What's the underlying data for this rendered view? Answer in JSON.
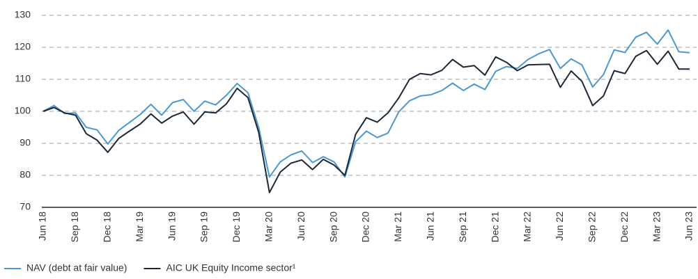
{
  "chart_data": {
    "type": "line",
    "categories": [
      "Jun 18",
      null,
      null,
      "Sep 18",
      null,
      null,
      "Dec 18",
      null,
      null,
      "Mar 19",
      null,
      null,
      "Jun 19",
      null,
      null,
      "Sep 19",
      null,
      null,
      "Dec 19",
      null,
      null,
      "Mar 20",
      null,
      null,
      "Jun 20",
      null,
      null,
      "Sep 20",
      null,
      null,
      "Dec 20",
      null,
      null,
      "Mar 21",
      null,
      null,
      "Jun 21",
      null,
      null,
      "Sep 21",
      null,
      null,
      "Dec 21",
      null,
      null,
      "Mar 22",
      null,
      null,
      "Jun 22",
      null,
      null,
      "Sep 22",
      null,
      null,
      "Dec 22",
      null,
      null,
      "Mar 23",
      null,
      null,
      "Jun 23"
    ],
    "series": [
      {
        "name": "NAV (debt at fair value)",
        "color": "#4a97d2",
        "values": [
          100,
          101.8,
          99.3,
          99.5,
          95,
          94.2,
          89.8,
          94,
          96.5,
          99,
          102.2,
          98.8,
          102.7,
          103.7,
          100,
          103.2,
          102,
          105,
          108.7,
          105.8,
          95,
          79.5,
          84.2,
          86.4,
          87.6,
          84,
          85.8,
          84.2,
          79.5,
          90.5,
          93.8,
          91.8,
          93.2,
          99.8,
          103.3,
          104.8,
          105.2,
          106.5,
          108.8,
          106.5,
          108.5,
          106.8,
          112.5,
          114,
          113.4,
          116.2,
          118,
          119.3,
          113.4,
          116.4,
          114.5,
          107.6,
          111.5,
          119.2,
          118.4,
          123.2,
          124.7,
          121,
          125.4,
          118.6,
          118.3
        ]
      },
      {
        "name": "AIC UK Equity Income sector¹",
        "color": "#1c2836",
        "values": [
          100,
          101.2,
          99.5,
          98.8,
          93,
          91,
          87.2,
          91.5,
          93.8,
          96,
          99.2,
          96.3,
          98.5,
          99.8,
          96,
          99.8,
          99.5,
          102.3,
          107.2,
          104.3,
          93.5,
          74.6,
          81,
          83.8,
          84.8,
          81.8,
          85,
          83.2,
          80,
          92.8,
          98,
          96.6,
          99.5,
          104.2,
          110,
          111.8,
          111.4,
          112.8,
          116.2,
          113.8,
          114.3,
          111.3,
          117,
          115.3,
          112.7,
          114.5,
          114.6,
          114.7,
          107.5,
          112.6,
          109.4,
          101.8,
          104.8,
          112.7,
          111.8,
          117.2,
          119,
          114.7,
          118.8,
          113.2,
          113.2
        ]
      }
    ],
    "ylim": [
      70,
      130
    ],
    "yticks": [
      70,
      80,
      90,
      100,
      110,
      120,
      130
    ],
    "grid": true,
    "legend": "bottom"
  }
}
